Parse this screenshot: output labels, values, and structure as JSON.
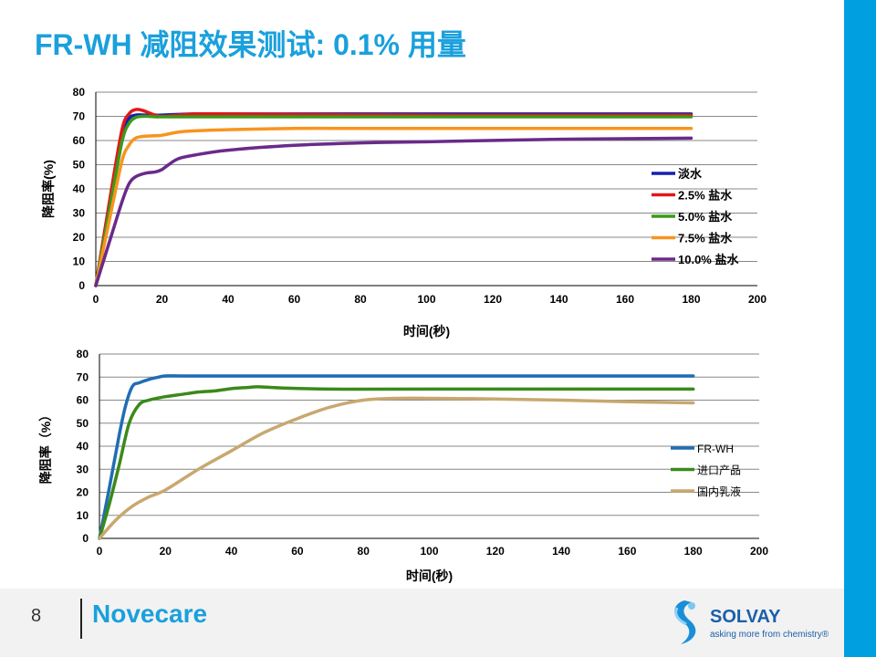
{
  "slide": {
    "title": "FR-WH 减阻效果测试: 0.1% 用量",
    "page_number": "8",
    "brand": "Novecare",
    "logo_name": "SOLVAY",
    "logo_tagline": "asking more from chemistry®"
  },
  "colors": {
    "accent": "#1aa0dc",
    "side_bar": "#00a0e0"
  },
  "chart_data": [
    {
      "type": "line",
      "title": "",
      "xlabel": "时间(秒)",
      "ylabel": "降阻率(%)",
      "xlim": [
        0,
        200
      ],
      "ylim": [
        0,
        80
      ],
      "xticks": [
        0,
        20,
        40,
        60,
        80,
        100,
        120,
        140,
        160,
        180,
        200
      ],
      "yticks": [
        0,
        10,
        20,
        30,
        40,
        50,
        60,
        70,
        80
      ],
      "grid": "horizontal",
      "legend_position": "right",
      "series": [
        {
          "name": "淡水",
          "color": "#1420b0",
          "x": [
            0,
            5,
            8,
            10,
            12,
            15,
            18,
            20,
            25,
            30,
            40,
            60,
            100,
            180
          ],
          "y": [
            0,
            40,
            62,
            69,
            70.5,
            70.5,
            70.5,
            70.5,
            70.8,
            71,
            71,
            71,
            71,
            71
          ]
        },
        {
          "name": "2.5% 盐水",
          "color": "#e01818",
          "x": [
            0,
            5,
            8,
            10,
            12,
            14,
            16,
            18,
            20,
            25,
            30,
            40,
            60,
            100,
            180
          ],
          "y": [
            0,
            42,
            65,
            71,
            72.8,
            72.5,
            71.5,
            70.5,
            70,
            70.5,
            71,
            71,
            70.8,
            70.5,
            70.5
          ]
        },
        {
          "name": "5.0% 盐水",
          "color": "#3a9a1a",
          "x": [
            0,
            5,
            8,
            10,
            12,
            14,
            16,
            18,
            20,
            25,
            30,
            40,
            60,
            100,
            180
          ],
          "y": [
            0,
            38,
            60,
            67,
            69.5,
            70,
            70,
            69.8,
            69.8,
            69.8,
            69.8,
            69.8,
            69.8,
            69.8,
            69.8
          ]
        },
        {
          "name": "7.5% 盐水",
          "color": "#f7941e",
          "x": [
            0,
            5,
            8,
            10,
            12,
            15,
            18,
            20,
            25,
            30,
            40,
            60,
            80,
            100,
            140,
            180
          ],
          "y": [
            0,
            33,
            52,
            58,
            61,
            61.8,
            62,
            62.2,
            63.5,
            64,
            64.5,
            65,
            65,
            65,
            65,
            65
          ]
        },
        {
          "name": "10.0% 盐水",
          "color": "#6a2a8a",
          "x": [
            0,
            5,
            8,
            10,
            12,
            15,
            18,
            20,
            22,
            25,
            30,
            40,
            60,
            80,
            100,
            140,
            180
          ],
          "y": [
            0,
            22,
            35,
            42,
            45,
            46.5,
            47,
            48,
            50,
            52.5,
            54,
            56,
            58,
            59,
            59.5,
            60.5,
            61
          ]
        }
      ]
    },
    {
      "type": "line",
      "title": "",
      "xlabel": "时间(秒)",
      "ylabel": "降阻率（%）",
      "xlim": [
        0,
        200
      ],
      "ylim": [
        0,
        80
      ],
      "xticks": [
        0,
        20,
        40,
        60,
        80,
        100,
        120,
        140,
        160,
        180,
        200
      ],
      "yticks": [
        0,
        10,
        20,
        30,
        40,
        50,
        60,
        70,
        80
      ],
      "grid": "horizontal",
      "legend_position": "right",
      "series": [
        {
          "name": "FR-WH",
          "color": "#1f6db5",
          "x": [
            0,
            3,
            6,
            8,
            10,
            12,
            15,
            18,
            20,
            25,
            40,
            60,
            100,
            180
          ],
          "y": [
            0,
            22,
            45,
            58,
            66,
            67.5,
            69,
            70,
            70.5,
            70.5,
            70.5,
            70.5,
            70.5,
            70.5
          ]
        },
        {
          "name": "进口产品",
          "color": "#3a8a1a",
          "x": [
            0,
            3,
            6,
            9,
            12,
            15,
            20,
            25,
            30,
            35,
            40,
            45,
            48,
            55,
            70,
            100,
            180
          ],
          "y": [
            0,
            15,
            32,
            50,
            58,
            60,
            61.5,
            62.5,
            63.5,
            64,
            65,
            65.5,
            65.8,
            65.3,
            64.8,
            64.8,
            64.8
          ]
        },
        {
          "name": "国内乳液",
          "color": "#c8a870",
          "x": [
            0,
            5,
            10,
            15,
            20,
            30,
            40,
            50,
            60,
            70,
            80,
            90,
            100,
            120,
            140,
            160,
            180
          ],
          "y": [
            0,
            8,
            14,
            18,
            21,
            30,
            38,
            46,
            52,
            57,
            60,
            60.8,
            60.8,
            60.5,
            60,
            59.3,
            58.8
          ]
        }
      ]
    }
  ]
}
